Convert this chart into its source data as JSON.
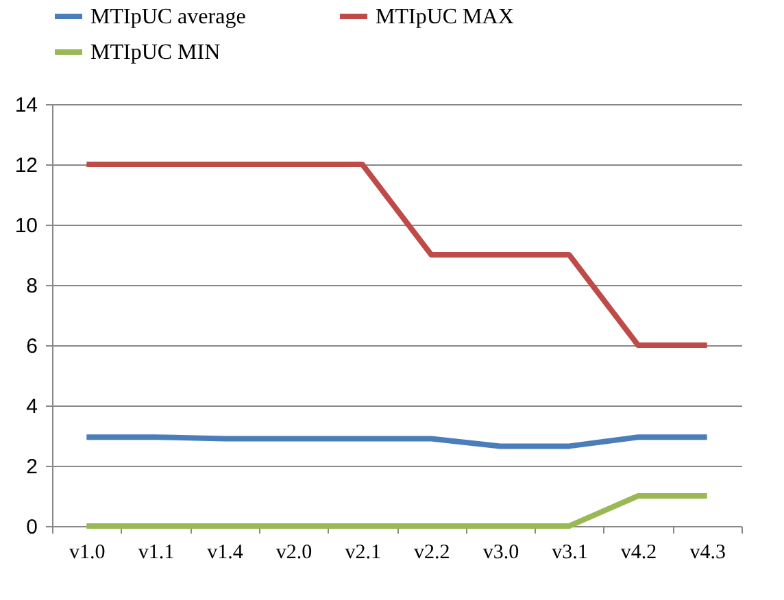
{
  "chart_data": {
    "type": "line",
    "categories": [
      "v1.0",
      "v1.1",
      "v1.4",
      "v2.0",
      "v2.1",
      "v2.2",
      "v3.0",
      "v3.1",
      "v4.2",
      "v4.3"
    ],
    "series": [
      {
        "name": "MTIpUC average",
        "color": "#4a7ebb",
        "values": [
          2.95,
          2.95,
          2.9,
          2.9,
          2.9,
          2.9,
          2.65,
          2.65,
          2.95,
          2.95
        ]
      },
      {
        "name": "MTIpUC MAX",
        "color": "#be4b48",
        "values": [
          12,
          12,
          12,
          12,
          12,
          9,
          9,
          9,
          6,
          6
        ]
      },
      {
        "name": "MTIpUC MIN",
        "color": "#98b954",
        "values": [
          0,
          0,
          0,
          0,
          0,
          0,
          0,
          0,
          1,
          1
        ]
      }
    ],
    "ylim": [
      0,
      14
    ],
    "yticks": [
      0,
      2,
      4,
      6,
      8,
      10,
      12,
      14
    ],
    "grid": "y",
    "legend": "top",
    "marker": "none",
    "line_style": "solid"
  }
}
